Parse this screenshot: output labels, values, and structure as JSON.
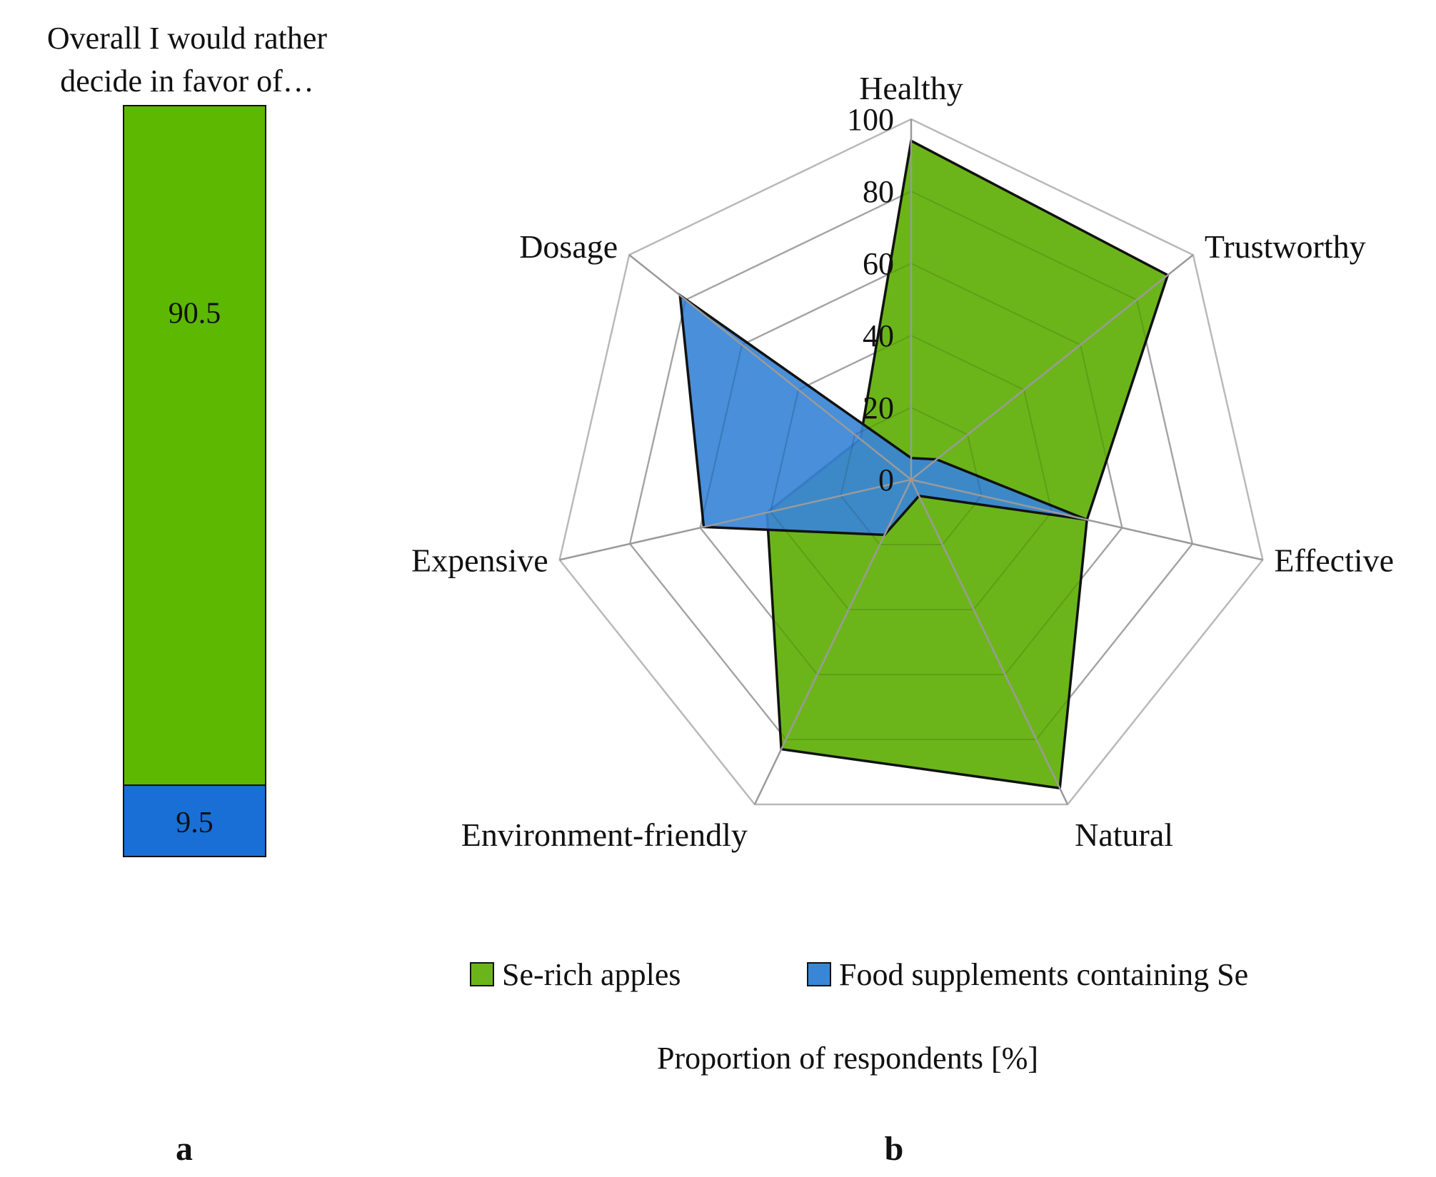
{
  "chart_data": [
    {
      "panel": "a",
      "type": "bar",
      "stacked": true,
      "title_lines": [
        "Overall I would rather",
        "decide in favor of…"
      ],
      "series": [
        {
          "name": "Se-rich apples",
          "value": 90.5,
          "label": "90.5",
          "color": "#5cb800"
        },
        {
          "name": "Food supplements containing Se",
          "value": 9.5,
          "label": "9.5",
          "color": "#1a6fd6"
        }
      ]
    },
    {
      "panel": "b",
      "type": "radar",
      "axes": [
        "Healthy",
        "Trustworthy",
        "Effective",
        "Natural",
        "Environment-friendly",
        "Expensive",
        "Dosage"
      ],
      "rlim": [
        0,
        100
      ],
      "ticks": [
        0,
        20,
        40,
        60,
        80,
        100
      ],
      "tick_labels": [
        "0",
        "20",
        "40",
        "60",
        "80",
        "100"
      ],
      "series": [
        {
          "name": "Se-rich apples",
          "color": "#6bb51a",
          "values": [
            94,
            91,
            50,
            95,
            83,
            41,
            18
          ]
        },
        {
          "name": "Food supplements containing Se",
          "color": "#3a86d6",
          "values": [
            6,
            9,
            50,
            5,
            17,
            59,
            82
          ]
        }
      ],
      "legend": [
        "Se-rich apples",
        "Food supplements containing Se"
      ],
      "xlabel": "Proportion of respondents [%]"
    }
  ],
  "panel_letters": [
    "a",
    "b"
  ]
}
